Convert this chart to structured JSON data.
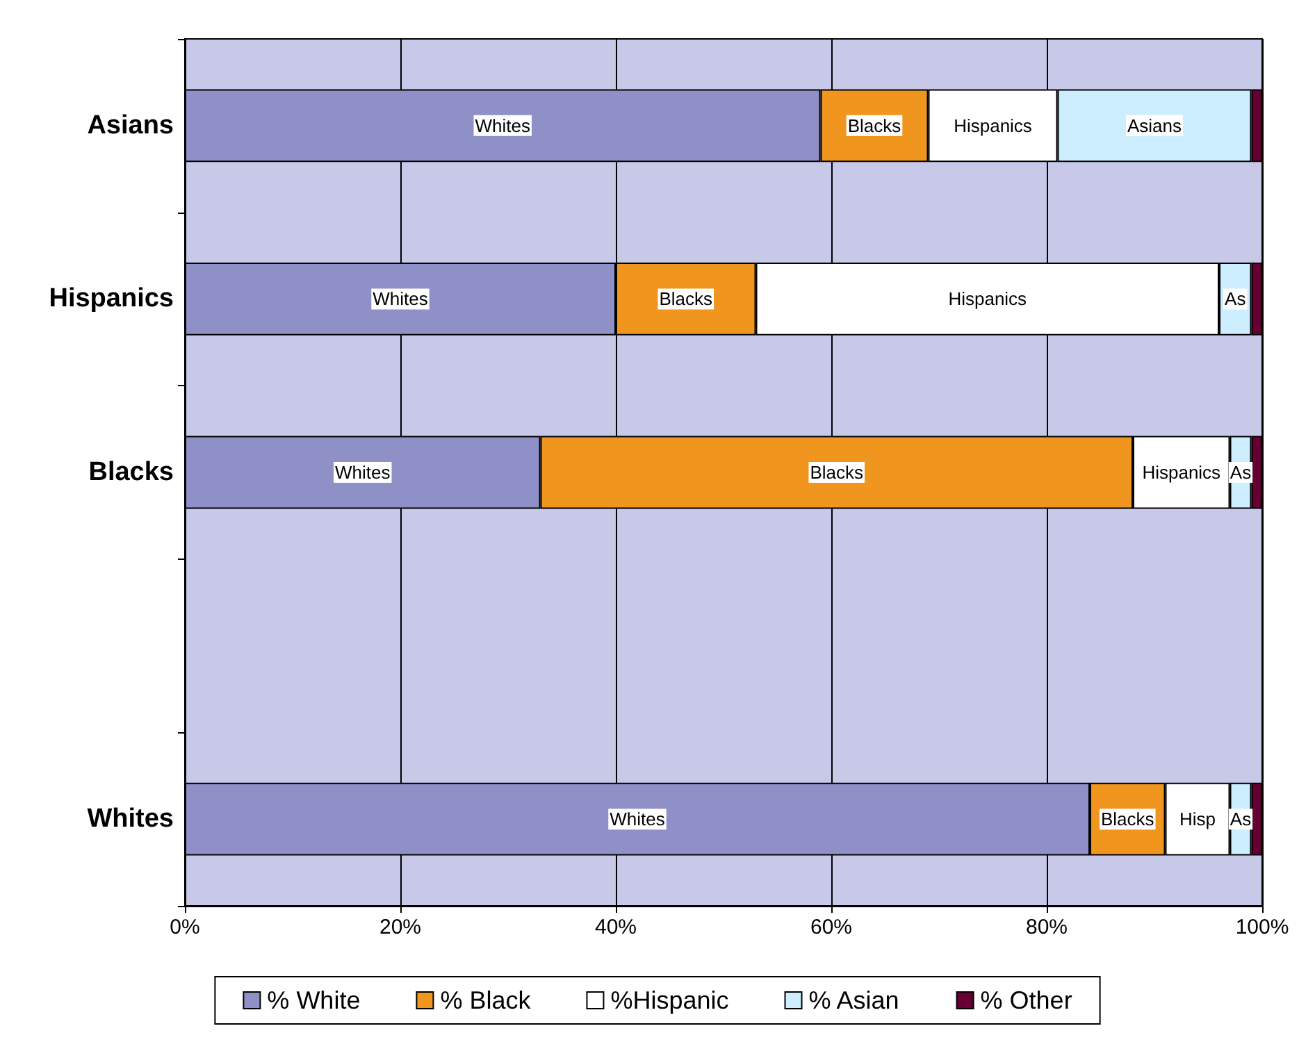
{
  "chart_data": {
    "type": "bar",
    "orientation": "horizontal",
    "stacked": true,
    "categories": [
      "Asians",
      "Hispanics",
      "Blacks",
      null,
      "Whites"
    ],
    "series": [
      {
        "name": "% White",
        "color": "#9090c8",
        "values": [
          59,
          40,
          33,
          null,
          84
        ],
        "value_labels": [
          "Whites",
          "Whites",
          "Whites",
          null,
          "Whites"
        ]
      },
      {
        "name": "% Black",
        "color": "#f0961e",
        "values": [
          10,
          13,
          55,
          null,
          7
        ],
        "value_labels": [
          "Blacks",
          "Blacks",
          "Blacks",
          null,
          "Blacks"
        ]
      },
      {
        "name": "%Hispanic",
        "color": "#ffffff",
        "values": [
          12,
          43,
          9,
          null,
          6
        ],
        "value_labels": [
          "Hispanics",
          "Hispanics",
          "Hispanics",
          null,
          "Hisp"
        ]
      },
      {
        "name": "% Asian",
        "color": "#cceeff",
        "values": [
          18,
          3,
          2,
          null,
          2
        ],
        "value_labels": [
          "Asians",
          "As",
          "As",
          null,
          "As"
        ]
      },
      {
        "name": "% Other",
        "color": "#660033",
        "values": [
          1,
          1,
          1,
          null,
          1
        ],
        "value_labels": [
          null,
          null,
          null,
          null,
          null
        ]
      }
    ],
    "xlim": [
      0,
      100
    ],
    "xticks": [
      {
        "value": 0,
        "label": "0%"
      },
      {
        "value": 20,
        "label": "20%"
      },
      {
        "value": 40,
        "label": "40%"
      },
      {
        "value": 60,
        "label": "60%"
      },
      {
        "value": 80,
        "label": "80%"
      },
      {
        "value": 100,
        "label": "100%"
      }
    ],
    "grid": "x",
    "legend": "bottom"
  }
}
